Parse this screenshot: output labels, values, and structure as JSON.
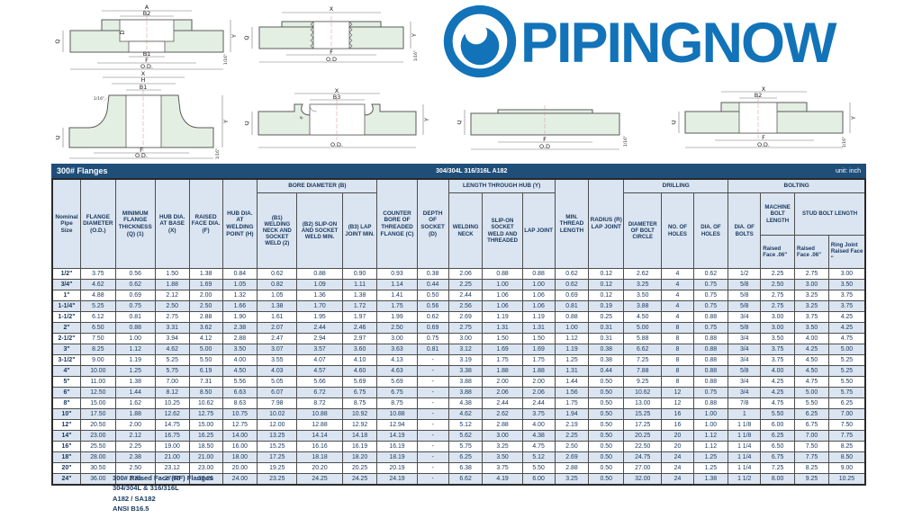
{
  "logo": {
    "text": "PIPINGNOW",
    "brand_color": "#1273b8"
  },
  "drawings": {
    "socket_weld": {
      "labels": {
        "a": "A",
        "b2": "B2",
        "d": "D",
        "q": "Q",
        "b1": "B1",
        "f": "F",
        "od": "O.D.",
        "y": "Y",
        "gap": "1/16\""
      }
    },
    "threaded": {
      "labels": {
        "x": "X",
        "q": "Q",
        "f": "F",
        "od": "O.D",
        "y": "Y",
        "gap": "1/16\""
      }
    },
    "weld_neck": {
      "labels": {
        "x": "X",
        "h": "H",
        "b1": "B1",
        "bevel": "1/16\"",
        "q": "Q",
        "f": "F",
        "od": "O.D.",
        "y": "Y",
        "gap": "1/16\""
      }
    },
    "lap_joint": {
      "labels": {
        "x": "X",
        "b3": "B3",
        "q": "Q",
        "r": "R",
        "od": "O.D.",
        "y": "Y"
      }
    },
    "blind": {
      "labels": {
        "q": "Q",
        "f": "F",
        "od": "O.D",
        "gap": "1/16\""
      }
    },
    "slip_on": {
      "labels": {
        "x": "X",
        "b2": "B2",
        "q": "Q",
        "f": "F",
        "od": "O.D.",
        "y": "Y",
        "gap": "1/16\""
      }
    }
  },
  "title_bar": {
    "left": "300# Flanges",
    "center": "304/304L 316/316L A182",
    "right": "unit: inch"
  },
  "table": {
    "groups": {
      "bore": "BORE DIAMETER (B)",
      "length": "LENGTH THROUGH HUB (Y)",
      "drilling": "DRILLING",
      "bolting": "BOLTING"
    },
    "headers": {
      "nominal": "Nominal Pipe Size",
      "od": "FLANGE DIAMETER (O.D.)",
      "q": "MINIMUM FLANGE THICKNESS (Q) (1)",
      "x": "HUB DIA. AT BASE (X)",
      "f": "RAISED FACE DIA. (F)",
      "h": "HUB DIA. AT WELDING POINT (H)",
      "b1": "(B1) WELDING NECK AND SOCKET WELD (2)",
      "b2": "(B2) SLIP-ON AND SOCKET WELD MIN.",
      "b3": "(B3) LAP JOINT MIN.",
      "c": "COUNTER BORE OF THREADED FLANGE (C)",
      "d": "DEPTH OF SOCKET (D)",
      "wn": "WELDING NECK",
      "so": "SLIP-ON SOCKET WELD AND THREADED",
      "lj": "LAP JOINT",
      "mtl": "MIN. THREAD LENGTH",
      "r": "RADIUS (R) LAP JOINT",
      "bc": "DIAMETER OF BOLT CIRCLE",
      "nh": "NO. OF HOLES",
      "dh": "DIA. OF HOLES",
      "db": "DIA. OF BOLTS",
      "mbl": "MACHINE BOLT LENGTH",
      "sbl": "STUD BOLT LENGTH",
      "mbl_rf": "Raised Face .06\"",
      "sbl_rf": "Raised Face .06\"",
      "sbl_rj": "Ring Joint Raised Face \""
    },
    "rows": [
      [
        "1/2\"",
        "3.75",
        "0.56",
        "1.50",
        "1.38",
        "0.84",
        "0.62",
        "0.88",
        "0.90",
        "0.93",
        "0.38",
        "2.06",
        "0.88",
        "0.88",
        "0.62",
        "0.12",
        "2.62",
        "4",
        "0.62",
        "1/2",
        "2.25",
        "2.75",
        "3.00"
      ],
      [
        "3/4\"",
        "4.62",
        "0.62",
        "1.88",
        "1.69",
        "1.05",
        "0.82",
        "1.09",
        "1.11",
        "1.14",
        "0.44",
        "2.25",
        "1.00",
        "1.00",
        "0.62",
        "0.12",
        "3.25",
        "4",
        "0.75",
        "5/8",
        "2.50",
        "3.00",
        "3.50"
      ],
      [
        "1\"",
        "4.88",
        "0.69",
        "2.12",
        "2.00",
        "1.32",
        "1.05",
        "1.36",
        "1.38",
        "1.41",
        "0.50",
        "2.44",
        "1.06",
        "1.06",
        "0.69",
        "0.12",
        "3.50",
        "4",
        "0.75",
        "5/8",
        "2.75",
        "3.25",
        "3.75"
      ],
      [
        "1-1/4\"",
        "5.25",
        "0.75",
        "2.50",
        "2.50",
        "1.66",
        "1.38",
        "1.70",
        "1.72",
        "1.75",
        "0.56",
        "2.56",
        "1.06",
        "1.06",
        "0.81",
        "0.19",
        "3.88",
        "4",
        "0.75",
        "5/8",
        "2.75",
        "3.25",
        "3.75"
      ],
      [
        "1-1/2\"",
        "6.12",
        "0.81",
        "2.75",
        "2.88",
        "1.90",
        "1.61",
        "1.95",
        "1.97",
        "1.99",
        "0.62",
        "2.69",
        "1.19",
        "1.19",
        "0.88",
        "0.25",
        "4.50",
        "4",
        "0.88",
        "3/4",
        "3.00",
        "3.75",
        "4.25"
      ],
      [
        "2\"",
        "6.50",
        "0.88",
        "3.31",
        "3.62",
        "2.38",
        "2.07",
        "2.44",
        "2.46",
        "2.50",
        "0.69",
        "2.75",
        "1.31",
        "1.31",
        "1.00",
        "0.31",
        "5.00",
        "8",
        "0.75",
        "5/8",
        "3.00",
        "3.50",
        "4.25"
      ],
      [
        "2-1/2\"",
        "7.50",
        "1.00",
        "3.94",
        "4.12",
        "2.88",
        "2.47",
        "2.94",
        "2.97",
        "3.00",
        "0.75",
        "3.00",
        "1.50",
        "1.50",
        "1.12",
        "0.31",
        "5.88",
        "8",
        "0.88",
        "3/4",
        "3.50",
        "4.00",
        "4.75"
      ],
      [
        "3\"",
        "8.25",
        "1.12",
        "4.62",
        "5.00",
        "3.50",
        "3.07",
        "3.57",
        "3.60",
        "3.63",
        "0.81",
        "3.12",
        "1.69",
        "1.69",
        "1.19",
        "0.38",
        "6.62",
        "8",
        "0.88",
        "3/4",
        "3.75",
        "4.25",
        "5.00"
      ],
      [
        "3-1/2\"",
        "9.00",
        "1.19",
        "5.25",
        "5.50",
        "4.00",
        "3.55",
        "4.07",
        "4.10",
        "4.13",
        "-",
        "3.19",
        "1.75",
        "1.75",
        "1.25",
        "0.38",
        "7.25",
        "8",
        "0.88",
        "3/4",
        "3.75",
        "4.50",
        "5.25"
      ],
      [
        "4\"",
        "10.00",
        "1.25",
        "5.75",
        "6.19",
        "4.50",
        "4.03",
        "4.57",
        "4.60",
        "4.63",
        "-",
        "3.38",
        "1.88",
        "1.88",
        "1.31",
        "0.44",
        "7.88",
        "8",
        "0.88",
        "5/8",
        "4.00",
        "4.50",
        "5.25"
      ],
      [
        "5\"",
        "11.00",
        "1.38",
        "7.00",
        "7.31",
        "5.56",
        "5.05",
        "5.66",
        "5.69",
        "5.69",
        "-",
        "3.88",
        "2.00",
        "2.00",
        "1.44",
        "0.50",
        "9.25",
        "8",
        "0.88",
        "3/4",
        "4.25",
        "4.75",
        "5.50"
      ],
      [
        "6\"",
        "12.50",
        "1.44",
        "8.12",
        "8.50",
        "6.63",
        "6.07",
        "6.72",
        "6.75",
        "6.75",
        "-",
        "3.88",
        "2.06",
        "2.06",
        "1.56",
        "0.50",
        "10.62",
        "12",
        "0.75",
        "3/4",
        "4.25",
        "5.00",
        "5.75"
      ],
      [
        "8\"",
        "15.00",
        "1.62",
        "10.25",
        "10.62",
        "8.63",
        "7.98",
        "8.72",
        "8.75",
        "8.75",
        "-",
        "4.38",
        "2.44",
        "2.44",
        "1.75",
        "0.50",
        "13.00",
        "12",
        "0.88",
        "7/8",
        "4.75",
        "5.50",
        "6.25"
      ],
      [
        "10\"",
        "17.50",
        "1.88",
        "12.62",
        "12.75",
        "10.75",
        "10.02",
        "10.88",
        "10.92",
        "10.88",
        "-",
        "4.62",
        "2.62",
        "3.75",
        "1.94",
        "0.50",
        "15.25",
        "16",
        "1.00",
        "1",
        "5.50",
        "6.25",
        "7.00"
      ],
      [
        "12\"",
        "20.50",
        "2.00",
        "14.75",
        "15.00",
        "12.75",
        "12.00",
        "12.88",
        "12.92",
        "12.94",
        "-",
        "5.12",
        "2.88",
        "4.00",
        "2.19",
        "0.50",
        "17.25",
        "16",
        "1.00",
        "1 1/8",
        "6.00",
        "6.75",
        "7.50"
      ],
      [
        "14\"",
        "23.00",
        "2.12",
        "16.75",
        "16.25",
        "14.00",
        "13.25",
        "14.14",
        "14.18",
        "14.19",
        "-",
        "5.62",
        "3.00",
        "4.38",
        "2.25",
        "0.50",
        "20.25",
        "20",
        "1.12",
        "1 1/8",
        "6.25",
        "7.00",
        "7.75"
      ],
      [
        "16\"",
        "25.50",
        "2.25",
        "19.00",
        "18.50",
        "16.00",
        "15.25",
        "16.16",
        "16.19",
        "16.19",
        "-",
        "5.75",
        "3.25",
        "4.75",
        "2.50",
        "0.50",
        "22.50",
        "20",
        "1.12",
        "1 1/4",
        "6.50",
        "7.50",
        "8.25"
      ],
      [
        "18\"",
        "28.00",
        "2.38",
        "21.00",
        "21.00",
        "18.00",
        "17.25",
        "18.18",
        "18.20",
        "18.19",
        "-",
        "6.25",
        "3.50",
        "5.12",
        "2.69",
        "0.50",
        "24.75",
        "24",
        "1.25",
        "1 1/4",
        "6.75",
        "7.75",
        "8.50"
      ],
      [
        "20\"",
        "30.50",
        "2.50",
        "23.12",
        "23.00",
        "20.00",
        "19.25",
        "20.20",
        "20.25",
        "20.19",
        "-",
        "6.38",
        "3.75",
        "5.50",
        "2.88",
        "0.50",
        "27.00",
        "24",
        "1.25",
        "1 1/4",
        "7.25",
        "8.25",
        "9.00"
      ],
      [
        "24\"",
        "36.00",
        "2.75",
        "27.62",
        "27.25",
        "24.00",
        "23.25",
        "24.25",
        "24.25",
        "24.19",
        "-",
        "6.62",
        "4.19",
        "6.00",
        "3.25",
        "0.50",
        "32.00",
        "24",
        "1.38",
        "1 1/2",
        "8.00",
        "9.25",
        "10.25"
      ]
    ]
  },
  "footer": {
    "lines": [
      "300# Raised Face (RF) Flanges",
      "304/304L & 316/316L",
      "A182 / SA182",
      "ANSI B16.5"
    ]
  },
  "colors": {
    "brand": "#1273b8",
    "title_bar": "#1f4e79",
    "header_bg": "#dbe5f1",
    "row_alt": "#dbe5f1",
    "text": "#17375e"
  }
}
